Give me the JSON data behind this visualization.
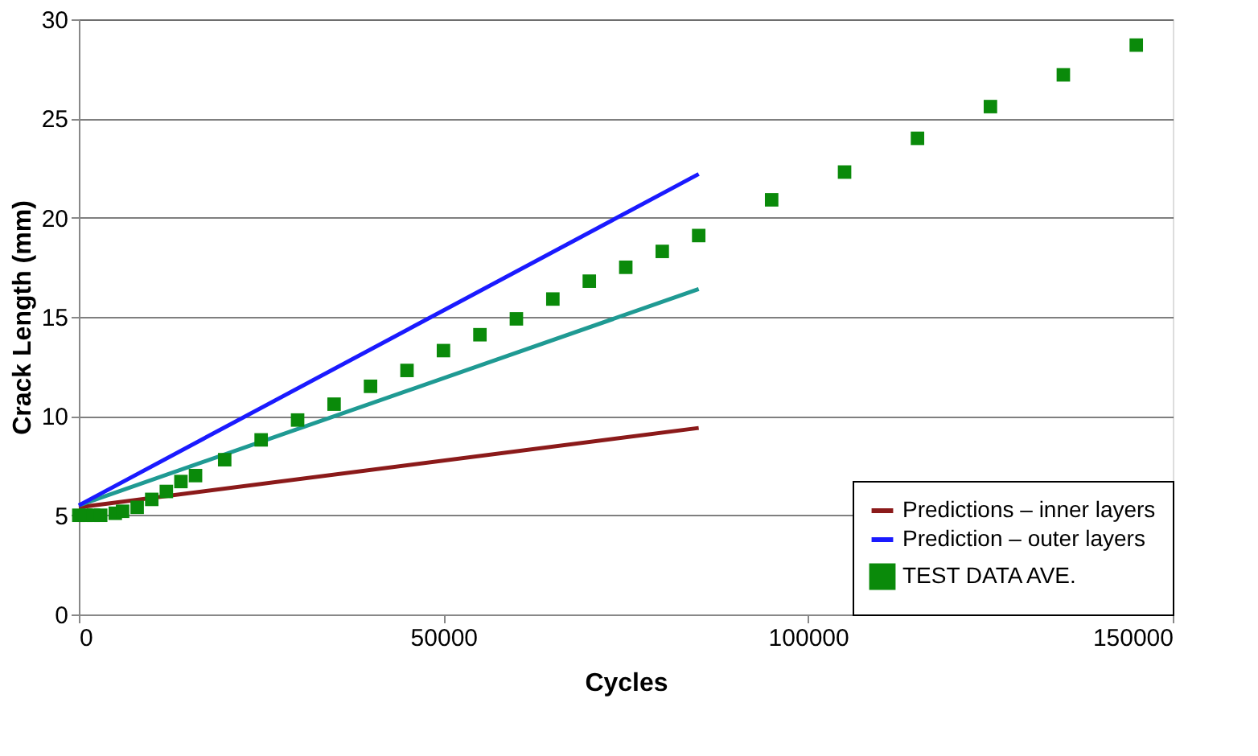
{
  "chart_data": {
    "type": "line",
    "xlabel": "Cycles",
    "ylabel": "Crack Length (mm)",
    "xlim": [
      0,
      150000
    ],
    "xticks": [
      0,
      50000,
      100000,
      150000
    ],
    "ylim": [
      0,
      30
    ],
    "yticks": [
      0,
      5,
      10,
      15,
      20,
      25,
      30
    ],
    "grid": "y",
    "legend": "bottom right",
    "line_style": "solid",
    "series": [
      {
        "name": "Predictions – inner layers",
        "color": "#8b1a1a",
        "x": [
          0,
          85000
        ],
        "values": [
          5.4,
          9.4
        ]
      },
      {
        "color": "#1f9a93",
        "x": [
          0,
          85000
        ],
        "values": [
          5.5,
          16.4
        ]
      },
      {
        "name": "Prediction – outer layers",
        "color": "#1a1aff",
        "x": [
          0,
          85000
        ],
        "values": [
          5.5,
          22.2
        ]
      },
      {
        "name": "TEST DATA AVE.",
        "type": "scatter",
        "marker": "square",
        "color": "#0a8a0a",
        "x": [
          0,
          1000,
          2000,
          3000,
          5000,
          6000,
          8000,
          10000,
          12000,
          14000,
          16000,
          20000,
          25000,
          30000,
          35000,
          40000,
          45000,
          50000,
          55000,
          60000,
          65000,
          70000,
          75000,
          80000,
          85000,
          95000,
          105000,
          115000,
          125000,
          135000,
          145000
        ],
        "values": [
          5.0,
          5.0,
          5.0,
          5.0,
          5.1,
          5.2,
          5.4,
          5.8,
          6.2,
          6.7,
          7.0,
          7.8,
          8.8,
          9.8,
          10.6,
          11.5,
          12.3,
          13.3,
          14.1,
          14.9,
          15.9,
          16.8,
          17.5,
          18.3,
          19.1,
          20.9,
          22.3,
          24.0,
          25.6,
          27.2,
          28.7
        ]
      }
    ]
  }
}
